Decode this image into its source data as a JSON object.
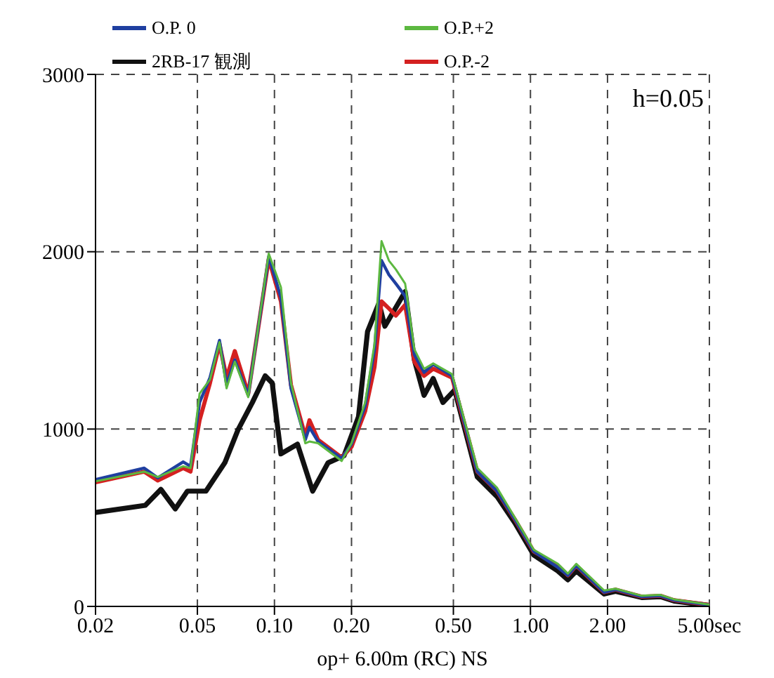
{
  "chart_data": {
    "type": "line",
    "xlabel": "op+ 6.00m (RC) NS",
    "annotations": [
      "h=0.05"
    ],
    "log": "x",
    "grid": true,
    "legend": "top",
    "line_style": "solid",
    "marker": "none",
    "xlim": [
      0.02,
      5
    ],
    "xticks": [
      0.02,
      0.05,
      {
        "value": 0.1,
        "label": "0.10"
      },
      {
        "value": 0.2,
        "label": "0.20"
      },
      {
        "value": 0.5,
        "label": "0.50"
      },
      {
        "value": 1,
        "label": "1.00"
      },
      {
        "value": 2,
        "label": "2.00"
      },
      {
        "value": 5,
        "label": "5.00sec"
      }
    ],
    "ylim": [
      0,
      3000
    ],
    "yticks": [
      0,
      1000,
      2000,
      3000
    ],
    "x": [
      0.02,
      0.031,
      0.035,
      0.044,
      0.047,
      0.051,
      0.056,
      0.061,
      0.065,
      0.07,
      0.079,
      0.095,
      0.106,
      0.116,
      0.132,
      0.137,
      0.148,
      0.183,
      0.2,
      0.226,
      0.246,
      0.262,
      0.28,
      0.298,
      0.324,
      0.352,
      0.384,
      0.417,
      0.494,
      0.62,
      0.74,
      0.87,
      1.03,
      1.28,
      1.4,
      1.51,
      1.94,
      2.15,
      2.72,
      3.22,
      3.64,
      5
    ],
    "series": [
      {
        "name": "O.P. 0",
        "color": "#1f3fa0",
        "values": [
          715,
          780,
          725,
          815,
          790,
          1150,
          1290,
          1500,
          1250,
          1390,
          1190,
          1975,
          1740,
          1230,
          940,
          1010,
          930,
          835,
          915,
          1130,
          1450,
          1950,
          1870,
          1820,
          1750,
          1420,
          1320,
          1365,
          1300,
          760,
          650,
          490,
          310,
          220,
          175,
          230,
          80,
          95,
          55,
          60,
          35,
          8
        ]
      },
      {
        "name": "O.P.+2",
        "color": "#5cb840",
        "values": [
          705,
          760,
          730,
          790,
          780,
          1200,
          1280,
          1490,
          1230,
          1380,
          1180,
          1990,
          1800,
          1260,
          920,
          930,
          920,
          820,
          920,
          1150,
          1480,
          2060,
          1950,
          1900,
          1820,
          1450,
          1340,
          1370,
          1310,
          780,
          670,
          500,
          320,
          240,
          185,
          240,
          90,
          100,
          60,
          65,
          40,
          10
        ]
      },
      {
        "name": "2RB-17 観測",
        "color": "#111111",
        "x": [
          0.02,
          0.0313,
          0.036,
          0.041,
          0.0457,
          0.054,
          0.064,
          0.072,
          0.082,
          0.092,
          0.098,
          0.106,
          0.123,
          0.141,
          0.162,
          0.187,
          0.213,
          0.231,
          0.256,
          0.27,
          0.324,
          0.352,
          0.384,
          0.417,
          0.455,
          0.506,
          0.62,
          0.74,
          0.87,
          1.03,
          1.28,
          1.4,
          1.51,
          1.94,
          2.15,
          2.72,
          3.22,
          3.64,
          5
        ],
        "values": [
          530,
          570,
          660,
          550,
          650,
          650,
          810,
          995,
          1150,
          1300,
          1260,
          860,
          915,
          650,
          810,
          850,
          1070,
          1550,
          1710,
          1580,
          1775,
          1390,
          1190,
          1285,
          1150,
          1220,
          730,
          620,
          470,
          290,
          200,
          150,
          200,
          70,
          85,
          50,
          55,
          30,
          5
        ]
      },
      {
        "name": "O.P.-2",
        "color": "#d42020",
        "values": [
          700,
          760,
          710,
          780,
          760,
          1050,
          1260,
          1480,
          1290,
          1440,
          1200,
          1960,
          1720,
          1250,
          960,
          1050,
          940,
          840,
          900,
          1100,
          1350,
          1720,
          1680,
          1640,
          1700,
          1380,
          1300,
          1340,
          1290,
          760,
          650,
          490,
          310,
          230,
          175,
          230,
          80,
          95,
          55,
          60,
          35,
          8
        ]
      }
    ]
  }
}
